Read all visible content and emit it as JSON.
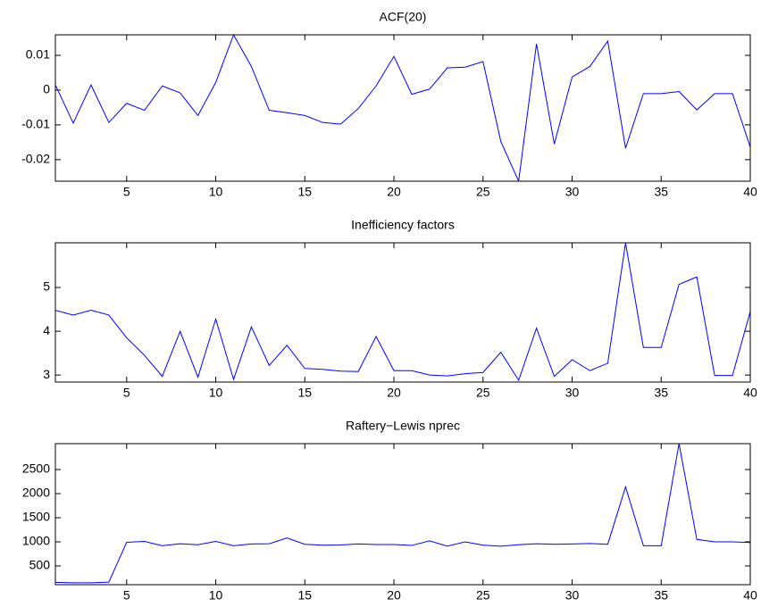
{
  "chart_data": [
    {
      "type": "line",
      "title": "ACF(20)",
      "x": [
        1,
        2,
        3,
        4,
        5,
        6,
        7,
        8,
        9,
        10,
        11,
        12,
        13,
        14,
        15,
        16,
        17,
        18,
        19,
        20,
        21,
        22,
        23,
        24,
        25,
        26,
        27,
        28,
        29,
        30,
        31,
        32,
        33,
        34,
        35,
        36,
        37,
        38,
        39,
        40
      ],
      "values": [
        0.0015,
        -0.0095,
        0.0015,
        -0.0093,
        -0.0038,
        -0.0058,
        0.0012,
        -0.0008,
        -0.0073,
        0.0022,
        0.0159,
        0.0068,
        -0.0058,
        -0.0065,
        -0.0073,
        -0.0093,
        -0.0098,
        -0.0053,
        0.0012,
        0.0097,
        -0.0012,
        0.0003,
        0.0064,
        0.0066,
        0.0082,
        -0.0148,
        -0.0262,
        0.0133,
        -0.0155,
        0.0038,
        0.0068,
        0.0141,
        -0.0167,
        -0.001,
        -0.001,
        -0.0004,
        -0.0057,
        -0.001,
        -0.001,
        -0.0164
      ],
      "color": "#0000ff",
      "xlim": [
        1,
        40
      ],
      "xticks": [
        5,
        10,
        15,
        20,
        25,
        30,
        35,
        40
      ],
      "ylim": [
        -0.0262,
        0.0159
      ],
      "yticks": [
        -0.02,
        -0.01,
        0,
        0.01
      ]
    },
    {
      "type": "line",
      "title": "Inefficiency factors",
      "x": [
        1,
        2,
        3,
        4,
        5,
        6,
        7,
        8,
        9,
        10,
        11,
        12,
        13,
        14,
        15,
        16,
        17,
        18,
        19,
        20,
        21,
        22,
        23,
        24,
        25,
        26,
        27,
        28,
        29,
        30,
        31,
        32,
        33,
        34,
        35,
        36,
        37,
        38,
        39,
        40
      ],
      "values": [
        4.48,
        4.37,
        4.48,
        4.37,
        3.85,
        3.45,
        2.97,
        4.0,
        2.95,
        4.28,
        2.9,
        4.1,
        3.22,
        3.68,
        3.15,
        3.13,
        3.09,
        3.08,
        3.88,
        3.1,
        3.1,
        3.0,
        2.98,
        3.03,
        3.06,
        3.52,
        2.88,
        4.07,
        2.97,
        3.35,
        3.1,
        3.27,
        6.02,
        3.63,
        3.63,
        5.07,
        5.24,
        2.99,
        2.99,
        4.45
      ],
      "color": "#0000ff",
      "xlim": [
        1,
        40
      ],
      "xticks": [
        5,
        10,
        15,
        20,
        25,
        30,
        35,
        40
      ],
      "ylim": [
        2.84,
        6.02
      ],
      "yticks": [
        3,
        4,
        5
      ]
    },
    {
      "type": "line",
      "title": "Raftery−Lewis nprec",
      "x": [
        1,
        2,
        3,
        4,
        5,
        6,
        7,
        8,
        9,
        10,
        11,
        12,
        13,
        14,
        15,
        16,
        17,
        18,
        19,
        20,
        21,
        22,
        23,
        24,
        25,
        26,
        27,
        28,
        29,
        30,
        31,
        32,
        33,
        34,
        35,
        36,
        37,
        38,
        39,
        40
      ],
      "values": [
        160,
        150,
        150,
        165,
        990,
        1010,
        920,
        960,
        940,
        1010,
        920,
        955,
        960,
        1080,
        950,
        930,
        935,
        955,
        945,
        945,
        925,
        1020,
        910,
        1000,
        930,
        910,
        940,
        960,
        950,
        955,
        965,
        950,
        2140,
        920,
        920,
        3037,
        1050,
        1000,
        1000,
        985
      ],
      "color": "#0000ff",
      "xlim": [
        1,
        40
      ],
      "xticks": [
        5,
        10,
        15,
        20,
        25,
        30,
        35,
        40
      ],
      "ylim": [
        111,
        3037
      ],
      "yticks": [
        500,
        1000,
        1500,
        2000,
        2500
      ]
    }
  ]
}
